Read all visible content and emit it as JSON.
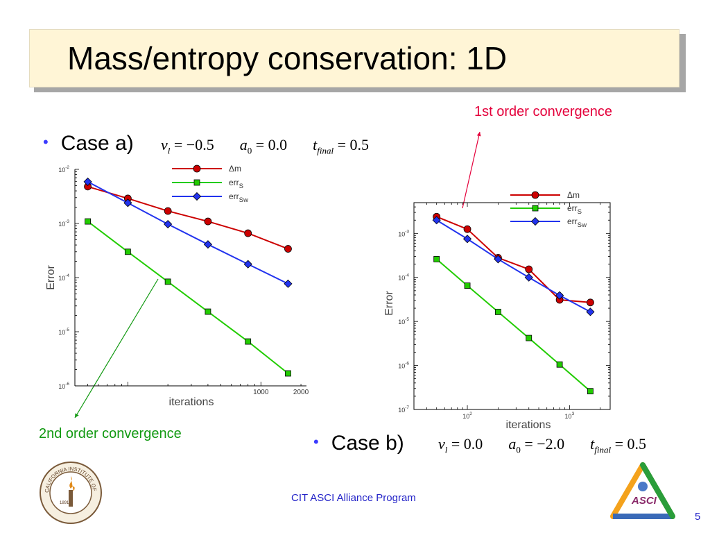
{
  "slide": {
    "title": "Mass/entropy conservation: 1D",
    "bullet_a": "Case a)",
    "bullet_b": "Case b)",
    "eq_a": {
      "v_sym": "v",
      "v_sub": "l",
      "v_val": "= −0.5",
      "a_sym": "a",
      "a_sub": "0",
      "a_val": "= 0.0",
      "t_sym": "t",
      "t_sub": "final",
      "t_val": "= 0.5"
    },
    "eq_b": {
      "v_sym": "v",
      "v_sub": "l",
      "v_val": "= 0.0",
      "a_sym": "a",
      "a_sub": "0",
      "a_val": "= −2.0",
      "t_sym": "t",
      "t_sub": "final",
      "t_val": "= 0.5"
    },
    "annotation_first": "1st order convergence",
    "annotation_second": "2nd order convergence",
    "footer": "CIT ASCI Alliance Program",
    "page_number": "5",
    "caltech_seal_text": "CALIFORNIA INSTITUTE OF TECHNOLOGY",
    "caltech_seal_year": "1891",
    "asci_logo_text": "ASCI",
    "colors": {
      "red": "#cc0000",
      "green": "#22cc00",
      "blue": "#2233ee",
      "annotation_red": "#e4003b",
      "annotation_green": "#119911",
      "footer_blue": "#2424c8"
    }
  },
  "chart_data": [
    {
      "type": "line",
      "xscale": "log",
      "yscale": "log",
      "xlim": [
        40,
        2200
      ],
      "ylim": [
        1e-06,
        0.01
      ],
      "xlabel": "iterations",
      "ylabel": "Error",
      "xtick_values": [
        1000,
        2000
      ],
      "xtick_labels": [
        "1000",
        "2000"
      ],
      "ytick_values": [
        0.01,
        0.001,
        0.0001,
        1e-05,
        1e-06
      ],
      "ytick_labels": [
        [
          "10",
          "-2"
        ],
        [
          "10",
          "-3"
        ],
        [
          "10",
          "-4"
        ],
        [
          "10",
          "-5"
        ],
        [
          "10",
          "-6"
        ]
      ],
      "legend_position": "top",
      "series": [
        {
          "name": "Δm",
          "sub": "",
          "marker": "circle",
          "color": "#cc0000",
          "x": [
            50,
            100,
            200,
            400,
            800,
            1600
          ],
          "y": [
            0.0048,
            0.0029,
            0.0017,
            0.00109,
            0.00066,
            0.00034
          ]
        },
        {
          "name": "err",
          "sub": "S",
          "marker": "square",
          "color": "#22cc00",
          "x": [
            50,
            100,
            200,
            400,
            800,
            1600
          ],
          "y": [
            0.00109,
            0.0003,
            8.4e-05,
            2.35e-05,
            6.6e-06,
            1.7e-06
          ]
        },
        {
          "name": "err",
          "sub": "Sw",
          "marker": "diamond",
          "color": "#2233ee",
          "x": [
            50,
            100,
            200,
            400,
            800,
            1600
          ],
          "y": [
            0.0059,
            0.0024,
            0.00097,
            0.00041,
            0.000177,
            7.7e-05
          ]
        }
      ]
    },
    {
      "type": "line",
      "xscale": "log",
      "yscale": "log",
      "xlim": [
        30,
        2500
      ],
      "ylim": [
        1e-07,
        0.005
      ],
      "xlabel": "iterations",
      "ylabel": "Error",
      "xtick_values": [
        100,
        1000
      ],
      "xtick_labels": [
        [
          "10",
          "2"
        ],
        [
          "10",
          "3"
        ]
      ],
      "ytick_values": [
        0.001,
        0.0001,
        1e-05,
        1e-06,
        1e-07
      ],
      "ytick_labels": [
        [
          "10",
          "-3"
        ],
        [
          "10",
          "-4"
        ],
        [
          "10",
          "-5"
        ],
        [
          "10",
          "-6"
        ],
        [
          "10",
          "-7"
        ]
      ],
      "legend_position": "top-right",
      "series": [
        {
          "name": "Δm",
          "sub": "",
          "marker": "circle",
          "color": "#cc0000",
          "x": [
            50,
            100,
            200,
            400,
            800,
            1600
          ],
          "y": [
            0.0024,
            0.00125,
            0.00028,
            0.000153,
            3.1e-05,
            2.7e-05
          ]
        },
        {
          "name": "err",
          "sub": "S",
          "marker": "square",
          "color": "#22cc00",
          "x": [
            50,
            100,
            200,
            400,
            800,
            1600
          ],
          "y": [
            0.00026,
            6.5e-05,
            1.65e-05,
            4.2e-06,
            1.05e-06,
            2.6e-07
          ]
        },
        {
          "name": "err",
          "sub": "Sw",
          "marker": "diamond",
          "color": "#2233ee",
          "x": [
            50,
            100,
            200,
            400,
            800,
            1600
          ],
          "y": [
            0.002,
            0.00075,
            0.00026,
            0.0001,
            3.9e-05,
            1.65e-05
          ]
        }
      ]
    }
  ]
}
